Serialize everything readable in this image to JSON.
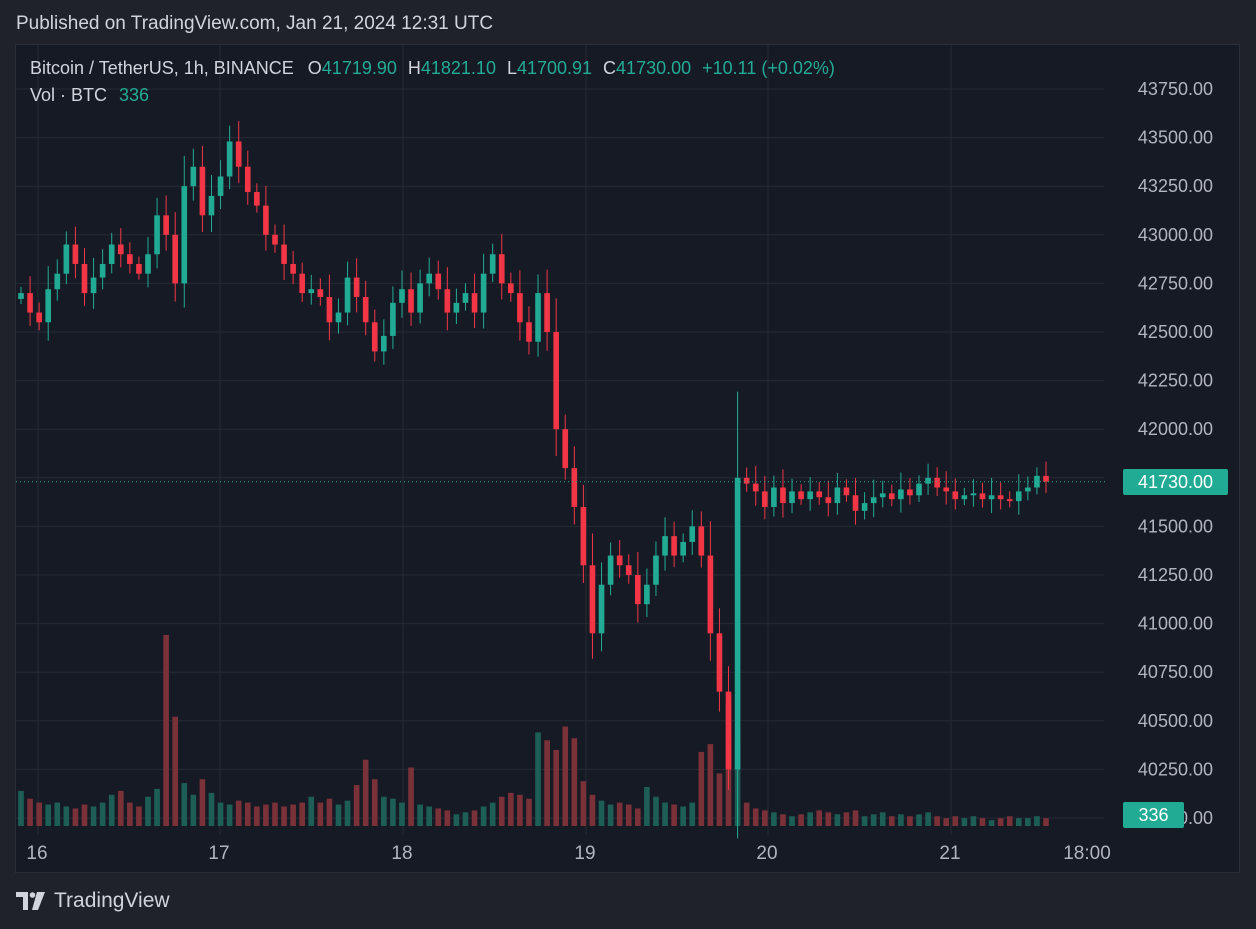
{
  "header": {
    "published": "Published on TradingView.com, Jan 21, 2024 12:31 UTC"
  },
  "legend": {
    "symbol": "Bitcoin / TetherUS, 1h, BINANCE",
    "o_label": "O",
    "o_value": "41719.90",
    "h_label": "H",
    "h_value": "41821.10",
    "l_label": "L",
    "l_value": "41700.91",
    "c_label": "C",
    "c_value": "41730.00",
    "change": "+10.11 (+0.02%)",
    "vol_label": "Vol · BTC",
    "vol_value": "336"
  },
  "price_tag": "41730.00",
  "vol_tag": "336",
  "footer": {
    "brand": "TradingView"
  },
  "colors": {
    "up": "#22ab94",
    "down": "#f23645",
    "vol_up": "#1d5f57",
    "vol_down": "#7a3138",
    "grid": "#262a35",
    "axis_text": "#b2b5be",
    "background": "#161a25"
  },
  "chart_data": {
    "type": "candlestick",
    "title": "Bitcoin / TetherUS, 1h, BINANCE",
    "ylim": [
      40000,
      43900
    ],
    "y_ticks": [
      "43750.00",
      "43500.00",
      "43250.00",
      "43000.00",
      "42750.00",
      "42500.00",
      "42250.00",
      "42000.00",
      "41750.00",
      "41500.00",
      "41250.00",
      "41000.00",
      "40750.00",
      "40500.00",
      "40250.00",
      "40000.00"
    ],
    "x_ticks": [
      "16",
      "17",
      "18",
      "19",
      "20",
      "21",
      "18:00"
    ],
    "last_price": 41730.0,
    "volume_last": 336,
    "price_path": [
      42700,
      42600,
      42550,
      42720,
      42800,
      42950,
      42850,
      42700,
      42780,
      42850,
      42950,
      42900,
      42850,
      42800,
      42900,
      43100,
      43000,
      42750,
      43250,
      43350,
      43100,
      43200,
      43300,
      43480,
      43350,
      43220,
      43150,
      43000,
      42950,
      42850,
      42800,
      42700,
      42720,
      42680,
      42550,
      42600,
      42780,
      42680,
      42550,
      42400,
      42480,
      42650,
      42720,
      42600,
      42750,
      42800,
      42720,
      42600,
      42650,
      42700,
      42600,
      42800,
      42900,
      42750,
      42700,
      42550,
      42450,
      42700,
      42500,
      42000,
      41800,
      41600,
      41300,
      40950,
      41200,
      41350,
      41300,
      41250,
      41100,
      41200,
      41350,
      41450,
      41350,
      41420,
      41500,
      41350,
      40950,
      40650,
      40250,
      41750,
      41720,
      41680,
      41600,
      41700,
      41620,
      41680,
      41640,
      41680,
      41650,
      41620,
      41700,
      41660,
      41580,
      41620,
      41650,
      41670,
      41640,
      41690,
      41660,
      41720,
      41750,
      41700,
      41680,
      41640,
      41660,
      41670,
      41640,
      41660,
      41640,
      41630,
      41680,
      41700,
      41760,
      41730
    ],
    "volume_scale": [
      0.18,
      0.14,
      0.12,
      0.11,
      0.12,
      0.1,
      0.09,
      0.11,
      0.1,
      0.12,
      0.16,
      0.18,
      0.12,
      0.1,
      0.15,
      0.19,
      0.98,
      0.56,
      0.22,
      0.16,
      0.24,
      0.17,
      0.12,
      0.11,
      0.13,
      0.12,
      0.1,
      0.11,
      0.12,
      0.1,
      0.11,
      0.12,
      0.15,
      0.12,
      0.14,
      0.11,
      0.13,
      0.21,
      0.34,
      0.24,
      0.15,
      0.14,
      0.12,
      0.3,
      0.11,
      0.1,
      0.09,
      0.08,
      0.06,
      0.07,
      0.08,
      0.1,
      0.12,
      0.15,
      0.17,
      0.16,
      0.14,
      0.48,
      0.44,
      0.39,
      0.51,
      0.45,
      0.23,
      0.16,
      0.13,
      0.11,
      0.12,
      0.11,
      0.09,
      0.2,
      0.15,
      0.12,
      0.11,
      0.1,
      0.12,
      0.38,
      0.42,
      0.27,
      0.62,
      0.43,
      0.12,
      0.09,
      0.08,
      0.07,
      0.06,
      0.05,
      0.06,
      0.07,
      0.08,
      0.07,
      0.06,
      0.07,
      0.08,
      0.05,
      0.06,
      0.07,
      0.05,
      0.06,
      0.05,
      0.06,
      0.07,
      0.05,
      0.04,
      0.05,
      0.04,
      0.05,
      0.04,
      0.03,
      0.04,
      0.05,
      0.04,
      0.04,
      0.05,
      0.04
    ]
  }
}
